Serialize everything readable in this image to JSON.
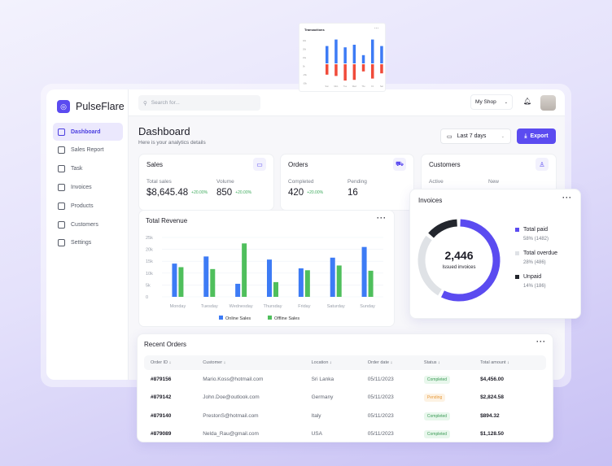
{
  "transactions": {
    "title": "Transactions",
    "yticks": [
      "40k",
      "30k",
      "15k",
      "0k",
      "-15k",
      "-30k"
    ],
    "days": [
      "Sun",
      "Mon",
      "Tue",
      "Wed",
      "Thu",
      "Fri",
      "Sat"
    ],
    "income": [
      28,
      38,
      26,
      30,
      14,
      38,
      28
    ],
    "expense": [
      -16,
      -18,
      -25,
      -24,
      -11,
      -22,
      -14
    ],
    "colors": {
      "income": "#3d7bf5",
      "expense": "#f04b3a"
    }
  },
  "brand": {
    "name": "PulseFlare"
  },
  "sidebar": {
    "items": [
      {
        "label": "Dashboard",
        "icon": "layout-icon",
        "active": true
      },
      {
        "label": "Sales Report",
        "icon": "report-icon"
      },
      {
        "label": "Task",
        "icon": "task-icon"
      },
      {
        "label": "Invoices",
        "icon": "invoice-icon"
      },
      {
        "label": "Products",
        "icon": "bag-icon"
      },
      {
        "label": "Customers",
        "icon": "user-icon"
      },
      {
        "label": "Settings",
        "icon": "gear-icon"
      }
    ]
  },
  "header": {
    "search_placeholder": "Search for...",
    "shop": "My Shop"
  },
  "page": {
    "title": "Dashboard",
    "subtitle": "Here is your analytics details",
    "range": "Last 7 days",
    "export": "Export"
  },
  "stats": {
    "sales": {
      "title": "Sales",
      "a_label": "Total sales",
      "a_val": "$8,645.48",
      "a_chg": "+20.00%",
      "b_label": "Volume",
      "b_val": "850",
      "b_chg": "+20.00%"
    },
    "orders": {
      "title": "Orders",
      "a_label": "Completed",
      "a_val": "420",
      "a_chg": "+20.00%",
      "b_label": "Pending",
      "b_val": "16"
    },
    "customers": {
      "title": "Customers",
      "a_label": "Active",
      "b_label": "New"
    }
  },
  "chart_data": {
    "type": "bar",
    "title": "Total Revenue",
    "categories": [
      "Monday",
      "Tuesday",
      "Wednesday",
      "Thursday",
      "Friday",
      "Saturday",
      "Sunday"
    ],
    "yticks": [
      "25k",
      "20k",
      "15k",
      "10k",
      "5k",
      "0"
    ],
    "ylim": [
      0,
      25000
    ],
    "series": [
      {
        "name": "Online Sales",
        "color": "#3d7bf5",
        "values": [
          14000,
          17000,
          5500,
          15700,
          12000,
          16500,
          21000
        ]
      },
      {
        "name": "Offline Sales",
        "color": "#4fbf5c",
        "values": [
          12500,
          11700,
          22500,
          6200,
          11200,
          13200,
          11000
        ]
      }
    ],
    "legend": "bottom",
    "grid": true
  },
  "invoices": {
    "title": "Invoices",
    "total": "2,446",
    "total_label": "Issued invoices",
    "items": [
      {
        "label": "Total paid",
        "detail": "58% (1482)",
        "pct": 58,
        "color": "#5b4bf0"
      },
      {
        "label": "Total overdue",
        "detail": "28% (486)",
        "pct": 28,
        "color": "#dfe2e6"
      },
      {
        "label": "Unpaid",
        "detail": "14% (186)",
        "pct": 14,
        "color": "#23262d"
      }
    ]
  },
  "orders": {
    "title": "Recent Orders",
    "columns": [
      "Order ID",
      "Customer",
      "Location",
      "Order date",
      "Status",
      "Total amount"
    ],
    "rows": [
      [
        "#879156",
        "Mario.Koss@hotmail.com",
        "Sri Lanka",
        "05/11/2023",
        "Completed",
        "$4,456.00"
      ],
      [
        "#879142",
        "John.Doe@outlook.com",
        "Germany",
        "05/11/2023",
        "Pending",
        "$2,824.58"
      ],
      [
        "#879140",
        "PrestonS@hotmail.com",
        "Italy",
        "05/11/2023",
        "Completed",
        "$894.32"
      ],
      [
        "#879089",
        "Nelda_Rau@gmail.com",
        "USA",
        "05/11/2023",
        "Completed",
        "$1,128.50"
      ]
    ]
  }
}
